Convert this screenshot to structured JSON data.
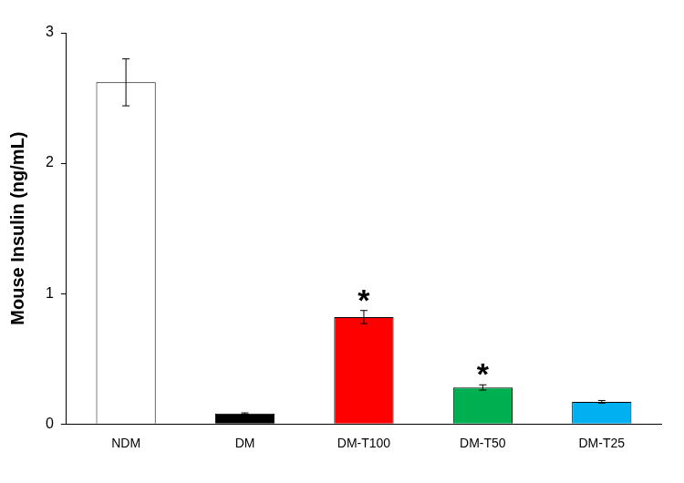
{
  "chart_data": {
    "type": "bar",
    "ylabel": "Mouse Insulin (ng/mL)",
    "categories": [
      "NDM",
      "DM",
      "DM-T100",
      "DM-T50",
      "DM-T25"
    ],
    "values": [
      2.62,
      0.08,
      0.82,
      0.28,
      0.17
    ],
    "errors": [
      0.18,
      0.005,
      0.05,
      0.02,
      0.01
    ],
    "colors": [
      "#ffffff",
      "#000000",
      "#ff0000",
      "#00b050",
      "#00b0f0"
    ],
    "ylim": [
      0,
      3
    ],
    "yticks": [
      0,
      1,
      2,
      3
    ],
    "grid": false,
    "annotations": [
      {
        "category": "DM-T100",
        "text": "*"
      },
      {
        "category": "DM-T50",
        "text": "*"
      }
    ]
  }
}
